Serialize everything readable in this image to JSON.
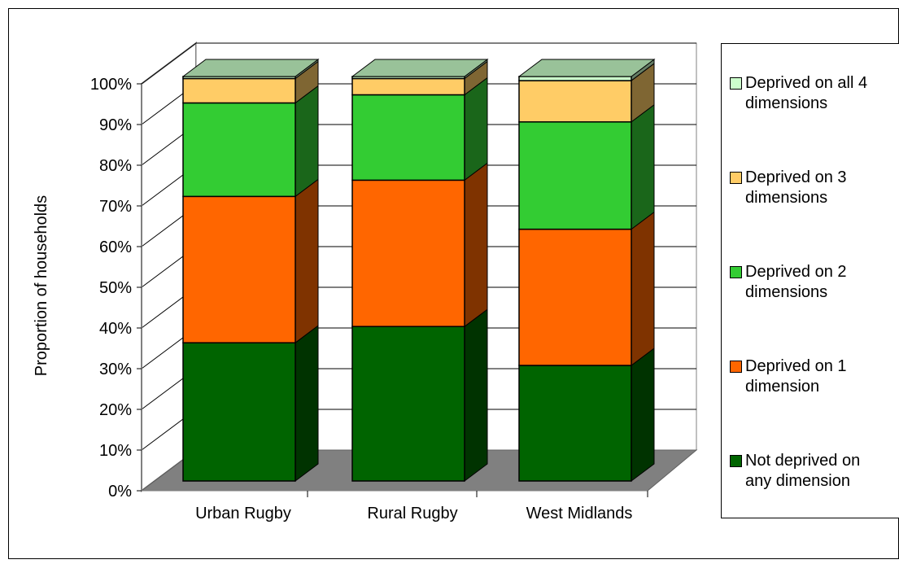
{
  "chart_data": {
    "type": "bar",
    "stacked": true,
    "three_d": true,
    "percent_stacked": true,
    "categories": [
      "Urban Rugby",
      "Rural Rugby",
      "West Midlands"
    ],
    "series": [
      {
        "name": "Not deprived on any dimension",
        "color": "#006400",
        "side_color": "#003300",
        "values": [
          34,
          38,
          28
        ]
      },
      {
        "name": "Deprived on 1 dimension",
        "color": "#FF6600",
        "side_color": "#7F3300",
        "values": [
          36,
          36,
          33
        ]
      },
      {
        "name": "Deprived on 2 dimensions",
        "color": "#33CC33",
        "side_color": "#1A661A",
        "values": [
          23,
          21,
          26
        ]
      },
      {
        "name": "Deprived on 3 dimensions",
        "color": "#FFCC66",
        "side_color": "#7F6633",
        "values": [
          6,
          4,
          10
        ]
      },
      {
        "name": "Deprived on all 4 dimensions",
        "color": "#CCFFCC",
        "side_color": "#667F66",
        "values": [
          0.5,
          0.5,
          1
        ]
      }
    ],
    "ylabel": "Proportion of households",
    "xlabel": "",
    "ylim": [
      0,
      100
    ],
    "y_ticks": [
      "0%",
      "10%",
      "20%",
      "30%",
      "40%",
      "50%",
      "60%",
      "70%",
      "80%",
      "90%",
      "100%"
    ],
    "grid": true,
    "legend_position": "right",
    "top_face_color": "#99C299",
    "floor_color": "#808080"
  },
  "legend": {
    "items": [
      {
        "label": "Deprived on all 4\ndimensions",
        "color": "#CCFFCC"
      },
      {
        "label": "Deprived on 3\ndimensions",
        "color": "#FFCC66"
      },
      {
        "label": "Deprived on 2\ndimensions",
        "color": "#33CC33"
      },
      {
        "label": "Deprived on 1\ndimension",
        "color": "#FF6600"
      },
      {
        "label": "Not deprived on\nany dimension",
        "color": "#006400"
      }
    ]
  }
}
